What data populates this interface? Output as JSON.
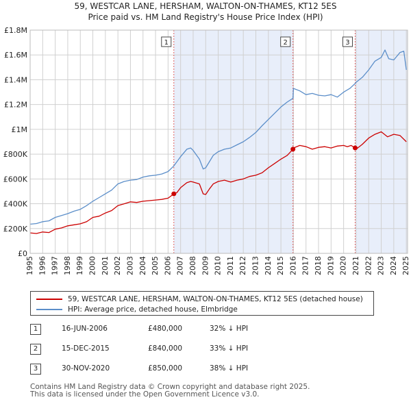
{
  "chart_data": {
    "type": "line",
    "title": "59, WESTCAR LANE, HERSHAM, WALTON-ON-THAMES, KT12 5ES",
    "subtitle": "Price paid vs. HM Land Registry's House Price Index (HPI)",
    "xlabel": "",
    "ylabel": "",
    "xlim": [
      1995,
      2025.1
    ],
    "ylim": [
      0,
      1800000
    ],
    "x_ticks": [
      1995,
      1996,
      1997,
      1998,
      1999,
      2000,
      2001,
      2002,
      2003,
      2004,
      2005,
      2006,
      2007,
      2008,
      2009,
      2010,
      2011,
      2012,
      2013,
      2014,
      2015,
      2016,
      2017,
      2018,
      2019,
      2020,
      2021,
      2022,
      2023,
      2024,
      2025
    ],
    "y_ticks": [
      {
        "value": 0,
        "label": "£0"
      },
      {
        "value": 200000,
        "label": "£200K"
      },
      {
        "value": 400000,
        "label": "£400K"
      },
      {
        "value": 600000,
        "label": "£600K"
      },
      {
        "value": 800000,
        "label": "£800K"
      },
      {
        "value": 1000000,
        "label": "£1M"
      },
      {
        "value": 1200000,
        "label": "£1.2M"
      },
      {
        "value": 1400000,
        "label": "£1.4M"
      },
      {
        "value": 1600000,
        "label": "£1.6M"
      },
      {
        "value": 1800000,
        "label": "£1.8M"
      }
    ],
    "grid": true,
    "shaded_ranges": [
      [
        2006.46,
        2015.96
      ],
      [
        2020.92,
        2025.1
      ]
    ],
    "series": [
      {
        "name": "59, WESTCAR LANE, HERSHAM, WALTON-ON-THAMES, KT12 5ES (detached house)",
        "color": "#cc0000",
        "x": [
          1995,
          1995.5,
          1996,
          1996.5,
          1997,
          1997.5,
          1998,
          1998.5,
          1999,
          1999.5,
          2000,
          2000.5,
          2001,
          2001.5,
          2002,
          2002.5,
          2003,
          2003.5,
          2004,
          2004.5,
          2005,
          2005.5,
          2006,
          2006.46,
          2006.7,
          2007,
          2007.5,
          2007.8,
          2008,
          2008.5,
          2008.8,
          2009,
          2009.3,
          2009.6,
          2010,
          2010.5,
          2011,
          2011.5,
          2012,
          2012.5,
          2013,
          2013.5,
          2014,
          2014.5,
          2015,
          2015.5,
          2015.96,
          2016,
          2016.5,
          2017,
          2017.5,
          2018,
          2018.5,
          2019,
          2019.5,
          2020,
          2020.3,
          2020.6,
          2020.92,
          2021,
          2021.5,
          2022,
          2022.5,
          2023,
          2023.5,
          2024,
          2024.5,
          2025
        ],
        "values": [
          165000,
          160000,
          172000,
          168000,
          195000,
          205000,
          222000,
          230000,
          238000,
          255000,
          290000,
          300000,
          325000,
          345000,
          385000,
          400000,
          415000,
          410000,
          420000,
          425000,
          430000,
          435000,
          445000,
          480000,
          490000,
          530000,
          570000,
          580000,
          575000,
          560000,
          480000,
          475000,
          520000,
          560000,
          580000,
          590000,
          575000,
          590000,
          600000,
          620000,
          630000,
          650000,
          690000,
          725000,
          760000,
          790000,
          840000,
          850000,
          870000,
          860000,
          840000,
          855000,
          860000,
          850000,
          865000,
          870000,
          860000,
          870000,
          850000,
          840000,
          880000,
          930000,
          960000,
          980000,
          940000,
          960000,
          950000,
          900000
        ]
      },
      {
        "name": "HPI: Average price, detached house, Elmbridge",
        "color": "#5b8ec9",
        "x": [
          1995,
          1995.5,
          1996,
          1996.5,
          1997,
          1997.5,
          1998,
          1998.5,
          1999,
          1999.5,
          2000,
          2000.5,
          2001,
          2001.5,
          2002,
          2002.5,
          2003,
          2003.5,
          2004,
          2004.5,
          2005,
          2005.5,
          2006,
          2006.46,
          2007,
          2007.5,
          2007.8,
          2008,
          2008.5,
          2008.8,
          2009,
          2009.3,
          2009.6,
          2010,
          2010.5,
          2011,
          2011.5,
          2012,
          2012.5,
          2013,
          2013.5,
          2014,
          2014.5,
          2015,
          2015.5,
          2015.96,
          2016,
          2016.5,
          2017,
          2017.5,
          2018,
          2018.5,
          2019,
          2019.5,
          2020,
          2020.5,
          2020.92,
          2021,
          2021.5,
          2022,
          2022.5,
          2023,
          2023.3,
          2023.6,
          2024,
          2024.5,
          2024.8,
          2025
        ],
        "values": [
          235000,
          240000,
          255000,
          262000,
          290000,
          305000,
          320000,
          340000,
          355000,
          385000,
          420000,
          450000,
          480000,
          510000,
          560000,
          580000,
          590000,
          595000,
          615000,
          625000,
          630000,
          640000,
          660000,
          705000,
          780000,
          840000,
          850000,
          830000,
          760000,
          680000,
          690000,
          740000,
          790000,
          820000,
          840000,
          850000,
          875000,
          900000,
          935000,
          975000,
          1030000,
          1080000,
          1130000,
          1180000,
          1220000,
          1250000,
          1330000,
          1310000,
          1280000,
          1290000,
          1275000,
          1270000,
          1280000,
          1260000,
          1300000,
          1330000,
          1370000,
          1380000,
          1420000,
          1480000,
          1550000,
          1580000,
          1640000,
          1570000,
          1560000,
          1620000,
          1630000,
          1480000
        ]
      }
    ],
    "sales": [
      {
        "id": "1",
        "x": 2006.46,
        "value": 480000
      },
      {
        "id": "2",
        "x": 2015.96,
        "value": 840000
      },
      {
        "id": "3",
        "x": 2020.92,
        "value": 850000
      }
    ]
  },
  "legend": {
    "property_label": "59, WESTCAR LANE, HERSHAM, WALTON-ON-THAMES, KT12 5ES (detached house)",
    "hpi_label": "HPI: Average price, detached house, Elmbridge"
  },
  "transactions": [
    {
      "num": "1",
      "date": "16-JUN-2006",
      "price": "£480,000",
      "hpi": "32% ↓ HPI"
    },
    {
      "num": "2",
      "date": "15-DEC-2015",
      "price": "£840,000",
      "hpi": "33% ↓ HPI"
    },
    {
      "num": "3",
      "date": "30-NOV-2020",
      "price": "£850,000",
      "hpi": "38% ↓ HPI"
    }
  ],
  "footer": {
    "line1": "Contains HM Land Registry data © Crown copyright and database right 2025.",
    "line2": "This data is licensed under the Open Government Licence v3.0."
  },
  "colors": {
    "property": "#cc0000",
    "hpi": "#5b8ec9",
    "shade": "#e8eefa",
    "grid": "#d0d0d0",
    "vline": "#e06060"
  }
}
